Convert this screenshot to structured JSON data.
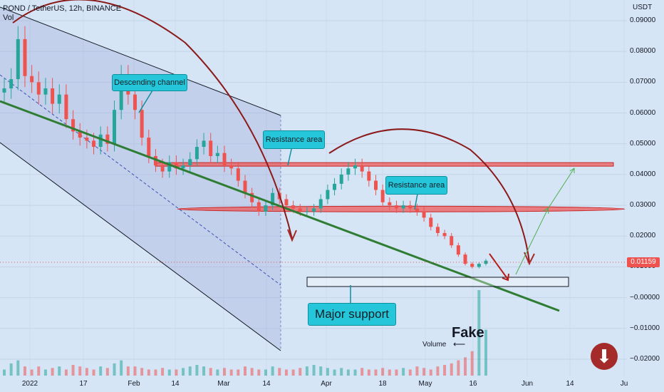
{
  "chart_data": {
    "type": "candlestick",
    "symbol_line": "POND / TetherUS, 12h, BINANCE",
    "indicator": "Vol",
    "y_unit": "USDT",
    "y_ticks": [
      "0.09000",
      "0.08000",
      "0.07000",
      "0.06000",
      "0.05000",
      "0.04000",
      "0.03000",
      "0.02000",
      "0.01000",
      "−0.00000",
      "−0.01000",
      "−0.02000"
    ],
    "y_tick_values": [
      0.09,
      0.08,
      0.07,
      0.06,
      0.05,
      0.04,
      0.03,
      0.02,
      0.01,
      0.0,
      -0.01,
      -0.02
    ],
    "ylim": [
      -0.0235,
      0.0935
    ],
    "x_ticks": [
      "2022",
      "17",
      "Feb",
      "14",
      "Mar",
      "14",
      "Apr",
      "18",
      "May",
      "16",
      "Jun",
      "14",
      "Ju"
    ],
    "last_price": "0.01159",
    "closes": [
      0.068,
      0.071,
      0.084,
      0.072,
      0.07,
      0.066,
      0.068,
      0.063,
      0.066,
      0.058,
      0.054,
      0.052,
      0.051,
      0.049,
      0.053,
      0.05,
      0.061,
      0.072,
      0.066,
      0.061,
      0.052,
      0.046,
      0.043,
      0.041,
      0.044,
      0.042,
      0.043,
      0.045,
      0.049,
      0.051,
      0.046,
      0.047,
      0.043,
      0.042,
      0.038,
      0.034,
      0.031,
      0.028,
      0.03,
      0.034,
      0.032,
      0.03,
      0.029,
      0.028,
      0.028,
      0.029,
      0.032,
      0.035,
      0.037,
      0.04,
      0.042,
      0.043,
      0.041,
      0.038,
      0.035,
      0.031,
      0.03,
      0.029,
      0.03,
      0.029,
      0.028,
      0.026,
      0.023,
      0.021,
      0.02,
      0.017,
      0.014,
      0.011,
      0.01,
      0.011,
      0.012
    ],
    "volumes": [
      0.2,
      0.4,
      0.5,
      0.3,
      0.2,
      0.3,
      0.2,
      0.25,
      0.3,
      0.2,
      0.35,
      0.3,
      0.25,
      0.2,
      0.3,
      0.25,
      0.4,
      0.5,
      0.3,
      0.3,
      0.25,
      0.2,
      0.2,
      0.25,
      0.2,
      0.2,
      0.25,
      0.3,
      0.35,
      0.3,
      0.25,
      0.2,
      0.25,
      0.2,
      0.2,
      0.3,
      0.25,
      0.2,
      0.2,
      0.3,
      0.25,
      0.2,
      0.2,
      0.25,
      0.3,
      0.35,
      0.3,
      0.25,
      0.2,
      0.25,
      0.2,
      0.2,
      0.25,
      0.2,
      0.2,
      0.25,
      0.2,
      0.2,
      0.25,
      0.2,
      0.3,
      0.25,
      0.2,
      0.3,
      0.35,
      0.4,
      0.5,
      0.6,
      0.8,
      2.8,
      1.5
    ],
    "annotations": {
      "channel": "Descending channel",
      "resistance_upper": "Resistance area",
      "resistance_lower": "Resistance area",
      "support": "Major support",
      "fake": "Fake",
      "volume_note": "Volume"
    },
    "levels": {
      "resistance_upper": 0.0433,
      "resistance_lower": 0.0288,
      "support_top": 0.0071,
      "support_bottom": 0.0041
    },
    "colors": {
      "up": "#26a69a",
      "down": "#ef5350",
      "trend": "#2e7d32",
      "arc": "#8b1a1a",
      "zone": "#ef5350",
      "callout": "#26c6da"
    }
  }
}
